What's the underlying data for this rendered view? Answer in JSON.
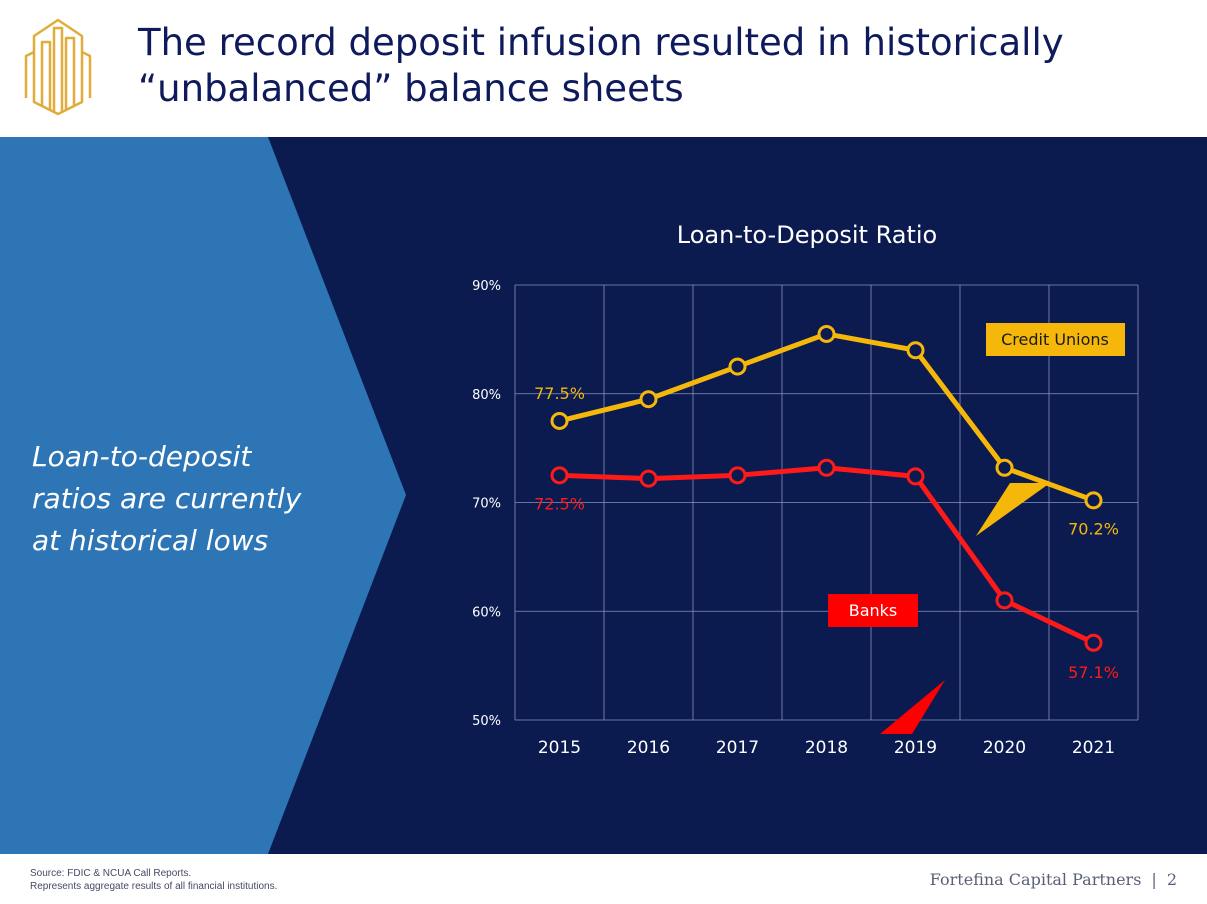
{
  "header": {
    "title_line1": "The record deposit infusion resulted in historically",
    "title_line2": "“unbalanced” balance sheets",
    "logo_icon": "building-skyline-icon"
  },
  "callout": {
    "line1": "Loan-to-deposit",
    "line2": "ratios are currently",
    "line3": "at historical lows"
  },
  "colors": {
    "navy": "#0b1b50",
    "blue": "#2e75b6",
    "credit_unions": "#f5b70a",
    "banks": "#ff1a1a",
    "title": "#0e1a5c"
  },
  "chart_data": {
    "type": "line",
    "title": "Loan-to-Deposit Ratio",
    "xlabel": "",
    "ylabel": "",
    "categories": [
      "2015",
      "2016",
      "2017",
      "2018",
      "2019",
      "2020",
      "2021"
    ],
    "ylim": [
      50,
      90
    ],
    "y_ticks": [
      50,
      60,
      70,
      80,
      90
    ],
    "y_tick_labels": [
      "50%",
      "60%",
      "70%",
      "80%",
      "90%"
    ],
    "grid": true,
    "series": [
      {
        "name": "Credit Unions",
        "color": "#f5b70a",
        "values": [
          77.5,
          79.5,
          82.5,
          85.5,
          84.0,
          73.2,
          70.2
        ]
      },
      {
        "name": "Banks",
        "color": "#ff1a1a",
        "values": [
          72.5,
          72.2,
          72.5,
          73.2,
          72.4,
          61.0,
          57.1
        ]
      }
    ],
    "data_labels": [
      {
        "series": 0,
        "index": 0,
        "text": "77.5%"
      },
      {
        "series": 0,
        "index": 6,
        "text": "70.2%"
      },
      {
        "series": 1,
        "index": 0,
        "text": "72.5%"
      },
      {
        "series": 1,
        "index": 6,
        "text": "57.1%"
      }
    ]
  },
  "footer": {
    "source_line1": "Source: FDIC & NCUA Call Reports.",
    "source_line2": "Represents aggregate results of all financial institutions.",
    "brand": "Fortefina Capital Partners",
    "separator": "|",
    "page_number": "2"
  }
}
